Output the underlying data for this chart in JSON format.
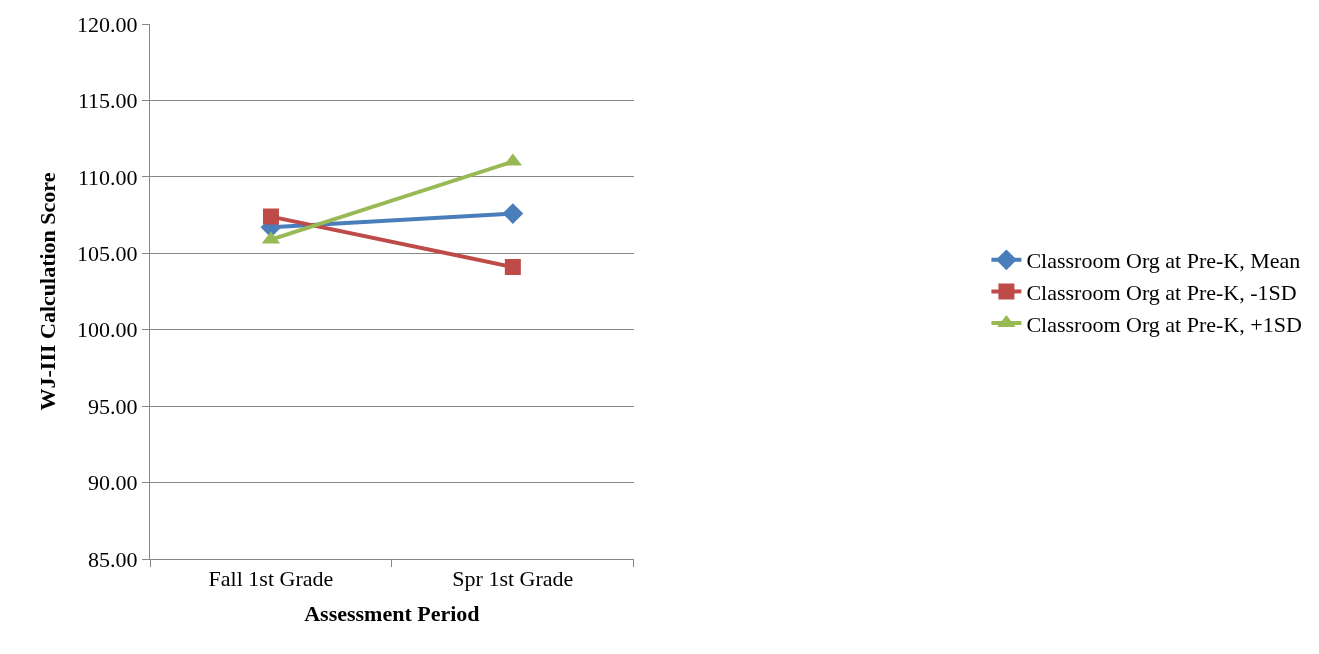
{
  "chart_data": {
    "type": "line",
    "xlabel": "Assessment Period",
    "ylabel": "WJ-III Calculation Score",
    "categories": [
      "Fall 1st Grade",
      "Spr 1st Grade"
    ],
    "series": [
      {
        "name": "Classroom Org at Pre-K, Mean",
        "color": "#4a7ebb",
        "marker": "diamond",
        "values": [
          106.7,
          107.6
        ]
      },
      {
        "name": "Classroom Org at Pre-K, -1SD",
        "color": "#be4b48",
        "marker": "square",
        "values": [
          107.4,
          104.1
        ]
      },
      {
        "name": "Classroom Org at Pre-K, +1SD",
        "color": "#98b954",
        "marker": "triangle",
        "values": [
          105.9,
          111.0
        ]
      }
    ],
    "ylim": [
      85,
      120
    ],
    "yticks": [
      {
        "value": 85,
        "label": "85.00"
      },
      {
        "value": 90,
        "label": "90.00"
      },
      {
        "value": 95,
        "label": "95.00"
      },
      {
        "value": 100,
        "label": "100.00"
      },
      {
        "value": 105,
        "label": "105.00"
      },
      {
        "value": 110,
        "label": "110.00"
      },
      {
        "value": 115,
        "label": "115.00"
      },
      {
        "value": 120,
        "label": "120.00"
      }
    ],
    "grid": "y",
    "legend": "right",
    "line_style": "solid"
  }
}
